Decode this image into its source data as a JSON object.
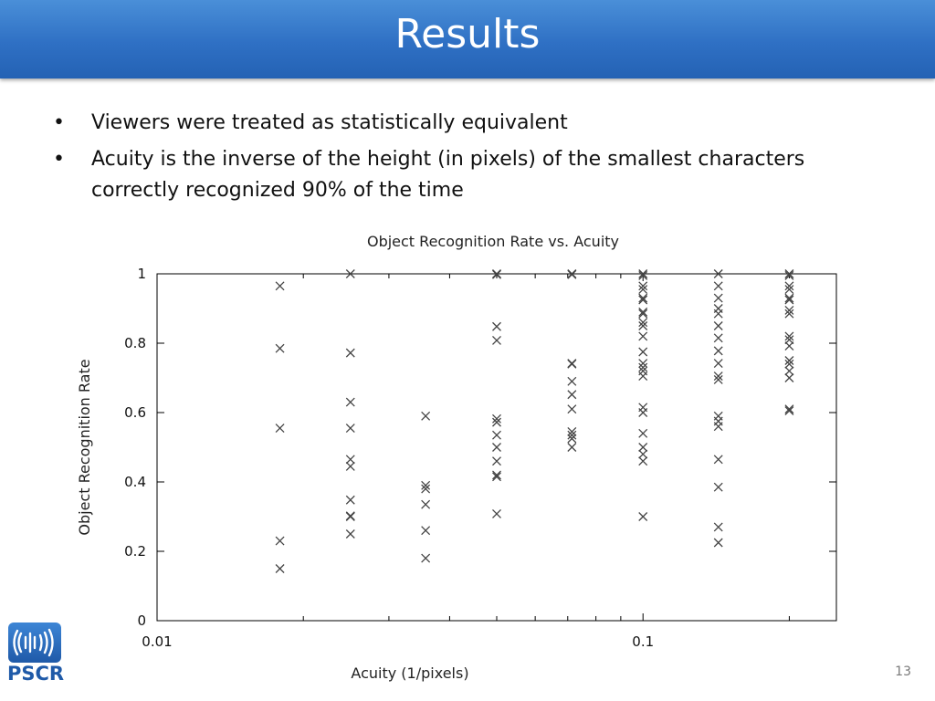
{
  "slide": {
    "title": "Results",
    "bullets": [
      "Viewers were treated as statistically equivalent",
      "Acuity is the inverse of the height (in pixels) of the smallest characters correctly recognized 90% of the time"
    ],
    "bullet_symbol": "•",
    "logo_text": "PSCR",
    "page_number": "13"
  },
  "colors": {
    "title_bar": "#2f70c4",
    "title_text": "#ffffff",
    "marker": "#444444",
    "logo": "#1f5aa8"
  },
  "chart_data": {
    "type": "scatter",
    "title": "Object Recognition Rate vs. Acuity",
    "xlabel": "Acuity (1/pixels)",
    "ylabel": "Object Recognition Rate",
    "xscale": "log",
    "xlim": [
      0.01,
      0.25
    ],
    "ylim": [
      0,
      1
    ],
    "xtick_labels": [
      {
        "value": 0.01,
        "label": "0.01"
      },
      {
        "value": 0.1,
        "label": "0.1"
      }
    ],
    "ytick_labels": [
      {
        "value": 0,
        "label": "0"
      },
      {
        "value": 0.2,
        "label": "0.2"
      },
      {
        "value": 0.4,
        "label": "0.4"
      },
      {
        "value": 0.6,
        "label": "0.6"
      },
      {
        "value": 0.8,
        "label": "0.8"
      },
      {
        "value": 1,
        "label": "1"
      }
    ],
    "marker": "x",
    "grid": false,
    "series": [
      {
        "x": 0.0179,
        "y": [
          0.965,
          0.785,
          0.555,
          0.23,
          0.15
        ]
      },
      {
        "x": 0.025,
        "y": [
          1.0,
          0.772,
          0.63,
          0.555,
          0.465,
          0.445,
          0.348,
          0.302,
          0.3,
          0.25
        ]
      },
      {
        "x": 0.0357,
        "y": [
          0.59,
          0.39,
          0.38,
          0.335,
          0.26,
          0.18
        ]
      },
      {
        "x": 0.05,
        "y": [
          1.0,
          0.998,
          0.848,
          0.808,
          0.582,
          0.572,
          0.535,
          0.5,
          0.46,
          0.42,
          0.415,
          0.308
        ]
      },
      {
        "x": 0.0714,
        "y": [
          1.0,
          0.998,
          0.742,
          0.74,
          0.69,
          0.652,
          0.61,
          0.545,
          0.535,
          0.525,
          0.5
        ]
      },
      {
        "x": 0.1,
        "y": [
          1.0,
          0.995,
          0.965,
          0.955,
          0.93,
          0.925,
          0.89,
          0.885,
          0.86,
          0.85,
          0.82,
          0.775,
          0.742,
          0.73,
          0.72,
          0.705,
          0.615,
          0.6,
          0.54,
          0.5,
          0.48,
          0.46,
          0.3
        ]
      },
      {
        "x": 0.1429,
        "y": [
          1.0,
          0.965,
          0.93,
          0.9,
          0.885,
          0.85,
          0.815,
          0.778,
          0.742,
          0.705,
          0.695,
          0.59,
          0.575,
          0.56,
          0.465,
          0.385,
          0.27,
          0.225
        ]
      },
      {
        "x": 0.2,
        "y": [
          1.0,
          0.995,
          0.965,
          0.955,
          0.93,
          0.925,
          0.895,
          0.885,
          0.82,
          0.81,
          0.792,
          0.75,
          0.74,
          0.72,
          0.7,
          0.61,
          0.605
        ]
      }
    ]
  }
}
